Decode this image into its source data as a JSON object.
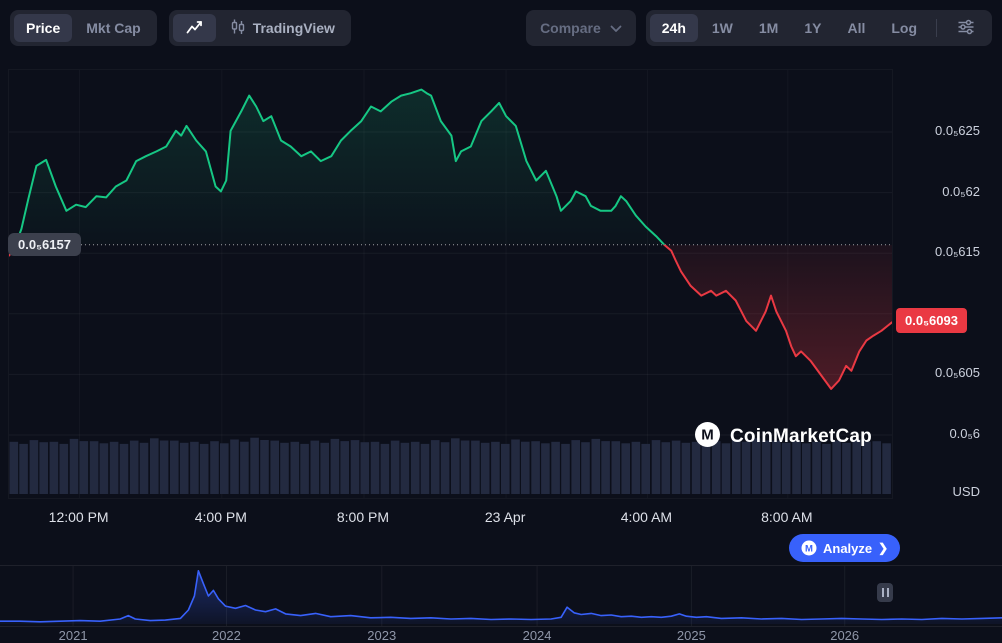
{
  "toolbar": {
    "price": "Price",
    "mkt_cap": "Mkt Cap",
    "tradingview": "TradingView",
    "compare": "Compare",
    "ranges": [
      "24h",
      "1W",
      "1M",
      "1Y",
      "All",
      "Log"
    ],
    "active_range": "24h"
  },
  "chart": {
    "open_label": "0.0₅6157",
    "last_label": "0.0₅6093",
    "unit": "USD",
    "watermark": "CoinMarketCap",
    "analyze_label": "Analyze",
    "y_axis": [
      {
        "label": "0.0₅625",
        "p": 6.25
      },
      {
        "label": "0.0₅62",
        "p": 6.2
      },
      {
        "label": "0.0₅615",
        "p": 6.15
      },
      {
        "label": "0.0₅605",
        "p": 6.05
      },
      {
        "label": "0.0₅6",
        "p": 6.0
      }
    ],
    "x_ticks": [
      {
        "label": "12:00 PM",
        "t": 8.0
      },
      {
        "label": "4:00 PM",
        "t": 24.1
      },
      {
        "label": "8:00 PM",
        "t": 40.2
      },
      {
        "label": "23 Apr",
        "t": 56.3
      },
      {
        "label": "4:00 AM",
        "t": 72.3
      },
      {
        "label": "8:00 AM",
        "t": 88.2
      }
    ]
  },
  "icons": {
    "analyze_chevron": "❯"
  },
  "colors": {
    "green": "#16c784",
    "red": "#ea3943",
    "blue": "#3861fb",
    "badge_gray": "#3c404d",
    "panel": "#222531",
    "panel_active": "#34384a",
    "background": "#0c0f1a"
  },
  "chart_data": {
    "type": "line",
    "title": "",
    "price_unit_note": "price values are in 0.0₅ notation, i.e. value × 1e-6 USD",
    "baseline_price": 6.157,
    "last_price": 6.093,
    "grid_prices": [
      6.25,
      6.2,
      6.15,
      6.1,
      6.05,
      6.0
    ],
    "ylim": [
      6.0,
      6.25
    ],
    "series_points": [
      [
        0,
        6.148
      ],
      [
        0.5,
        6.152
      ],
      [
        1.4,
        6.17
      ],
      [
        2.2,
        6.195
      ],
      [
        3.1,
        6.222
      ],
      [
        4.2,
        6.227
      ],
      [
        4.8,
        6.215
      ],
      [
        5.3,
        6.205
      ],
      [
        6.5,
        6.185
      ],
      [
        7.6,
        6.19
      ],
      [
        8.7,
        6.188
      ],
      [
        9.9,
        6.197
      ],
      [
        11,
        6.196
      ],
      [
        12.1,
        6.205
      ],
      [
        13.3,
        6.21
      ],
      [
        14.4,
        6.226
      ],
      [
        15.5,
        6.23
      ],
      [
        16.7,
        6.234
      ],
      [
        17.8,
        6.238
      ],
      [
        18.9,
        6.251
      ],
      [
        19.5,
        6.247
      ],
      [
        20.1,
        6.255
      ],
      [
        21.2,
        6.243
      ],
      [
        22.3,
        6.234
      ],
      [
        23.4,
        6.205
      ],
      [
        24,
        6.201
      ],
      [
        24.6,
        6.21
      ],
      [
        25.1,
        6.251
      ],
      [
        26.3,
        6.267
      ],
      [
        27.2,
        6.28
      ],
      [
        28,
        6.271
      ],
      [
        28.8,
        6.259
      ],
      [
        29.7,
        6.263
      ],
      [
        30.8,
        6.243
      ],
      [
        31.9,
        6.238
      ],
      [
        33.1,
        6.23
      ],
      [
        34.2,
        6.234
      ],
      [
        35.3,
        6.226
      ],
      [
        36.5,
        6.23
      ],
      [
        37.6,
        6.243
      ],
      [
        38.7,
        6.251
      ],
      [
        39.9,
        6.259
      ],
      [
        41,
        6.271
      ],
      [
        42.1,
        6.267
      ],
      [
        43.3,
        6.275
      ],
      [
        44.4,
        6.28
      ],
      [
        45.5,
        6.282
      ],
      [
        46.7,
        6.285
      ],
      [
        47.3,
        6.282
      ],
      [
        47.8,
        6.28
      ],
      [
        48.9,
        6.259
      ],
      [
        50.1,
        6.247
      ],
      [
        50.6,
        6.226
      ],
      [
        51.2,
        6.234
      ],
      [
        52.3,
        6.238
      ],
      [
        53.5,
        6.259
      ],
      [
        54.6,
        6.267
      ],
      [
        55.5,
        6.274
      ],
      [
        56.3,
        6.263
      ],
      [
        57.4,
        6.255
      ],
      [
        58.6,
        6.226
      ],
      [
        59.7,
        6.21
      ],
      [
        60.8,
        6.218
      ],
      [
        62,
        6.197
      ],
      [
        62.5,
        6.185
      ],
      [
        63.6,
        6.193
      ],
      [
        64.2,
        6.201
      ],
      [
        65.3,
        6.197
      ],
      [
        65.9,
        6.189
      ],
      [
        67,
        6.185
      ],
      [
        68.2,
        6.185
      ],
      [
        68.7,
        6.189
      ],
      [
        69.3,
        6.197
      ],
      [
        69.9,
        6.193
      ],
      [
        71,
        6.181
      ],
      [
        72.1,
        6.172
      ],
      [
        73.3,
        6.164
      ],
      [
        74.2,
        6.157
      ],
      [
        75,
        6.152
      ],
      [
        75.5,
        6.144
      ],
      [
        76.1,
        6.135
      ],
      [
        77.2,
        6.123
      ],
      [
        78.4,
        6.115
      ],
      [
        79.5,
        6.119
      ],
      [
        80.1,
        6.115
      ],
      [
        81.2,
        6.119
      ],
      [
        82.3,
        6.111
      ],
      [
        83.5,
        6.094
      ],
      [
        84.6,
        6.086
      ],
      [
        85.7,
        6.102
      ],
      [
        86.3,
        6.115
      ],
      [
        86.9,
        6.102
      ],
      [
        88,
        6.086
      ],
      [
        88.6,
        6.073
      ],
      [
        89.1,
        6.065
      ],
      [
        89.7,
        6.069
      ],
      [
        90.8,
        6.061
      ],
      [
        92,
        6.049
      ],
      [
        93.1,
        6.038
      ],
      [
        94,
        6.045
      ],
      [
        94.8,
        6.057
      ],
      [
        95.4,
        6.053
      ],
      [
        96.3,
        6.069
      ],
      [
        97.1,
        6.078
      ],
      [
        97.9,
        6.082
      ],
      [
        98.8,
        6.086
      ],
      [
        100,
        6.093
      ]
    ],
    "volume": [
      0.9,
      0.93,
      0.9,
      0.95,
      0.91,
      0.9,
      0.92,
      0.96,
      0.92,
      0.9,
      0.91,
      0.94,
      0.97,
      0.92,
      0.9,
      0.92,
      0.95,
      0.93,
      0.9,
      0.92,
      0.9,
      0.93,
      0.96,
      0.92,
      0.9,
      0.94,
      0.91,
      0.9,
      0.93,
      0.95,
      0.91,
      0.9,
      0.93,
      0.92,
      0.9,
      0.91,
      0.94,
      0.96,
      0.92,
      0.91,
      0.9,
      0.92,
      0.94,
      0.91
    ],
    "mini": {
      "points": [
        [
          0,
          0.05
        ],
        [
          2,
          0.05
        ],
        [
          4,
          0.04
        ],
        [
          6,
          0.05
        ],
        [
          8,
          0.06
        ],
        [
          10,
          0.05
        ],
        [
          12,
          0.09
        ],
        [
          12.8,
          0.15
        ],
        [
          13.5,
          0.09
        ],
        [
          15,
          0.06
        ],
        [
          16.5,
          0.07
        ],
        [
          18,
          0.1
        ],
        [
          18.8,
          0.25
        ],
        [
          19.4,
          0.5
        ],
        [
          19.8,
          0.95
        ],
        [
          20.3,
          0.72
        ],
        [
          20.8,
          0.5
        ],
        [
          21.3,
          0.6
        ],
        [
          21.8,
          0.45
        ],
        [
          22.5,
          0.32
        ],
        [
          23.5,
          0.28
        ],
        [
          24.5,
          0.33
        ],
        [
          25.5,
          0.25
        ],
        [
          26.5,
          0.22
        ],
        [
          27.5,
          0.27
        ],
        [
          28.5,
          0.18
        ],
        [
          30,
          0.15
        ],
        [
          31.5,
          0.19
        ],
        [
          33,
          0.13
        ],
        [
          35,
          0.15
        ],
        [
          37,
          0.11
        ],
        [
          39,
          0.12
        ],
        [
          41,
          0.1
        ],
        [
          43,
          0.11
        ],
        [
          45,
          0.09
        ],
        [
          47,
          0.1
        ],
        [
          49,
          0.08
        ],
        [
          51,
          0.09
        ],
        [
          53,
          0.08
        ],
        [
          55,
          0.09
        ],
        [
          56,
          0.12
        ],
        [
          56.6,
          0.3
        ],
        [
          57.3,
          0.2
        ],
        [
          58,
          0.17
        ],
        [
          59,
          0.19
        ],
        [
          60,
          0.15
        ],
        [
          61,
          0.16
        ],
        [
          62,
          0.13
        ],
        [
          63,
          0.14
        ],
        [
          64,
          0.12
        ],
        [
          65,
          0.13
        ],
        [
          66,
          0.12
        ],
        [
          67,
          0.14
        ],
        [
          67.8,
          0.18
        ],
        [
          68.5,
          0.14
        ],
        [
          69.5,
          0.12
        ],
        [
          70.5,
          0.13
        ],
        [
          72,
          0.1
        ],
        [
          74,
          0.11
        ],
        [
          76,
          0.09
        ],
        [
          78,
          0.1
        ],
        [
          80,
          0.08
        ],
        [
          82,
          0.09
        ],
        [
          84,
          0.1
        ],
        [
          86,
          0.09
        ],
        [
          88,
          0.08
        ],
        [
          90,
          0.09
        ],
        [
          92,
          0.08
        ],
        [
          94,
          0.1
        ],
        [
          96,
          0.09
        ],
        [
          98,
          0.1
        ],
        [
          100,
          0.11
        ]
      ],
      "year_ticks": [
        {
          "label": "2021",
          "t": 7.3
        },
        {
          "label": "2022",
          "t": 22.6
        },
        {
          "label": "2023",
          "t": 38.1
        },
        {
          "label": "2024",
          "t": 53.6
        },
        {
          "label": "2025",
          "t": 69.0
        },
        {
          "label": "2026",
          "t": 84.3
        }
      ]
    }
  }
}
